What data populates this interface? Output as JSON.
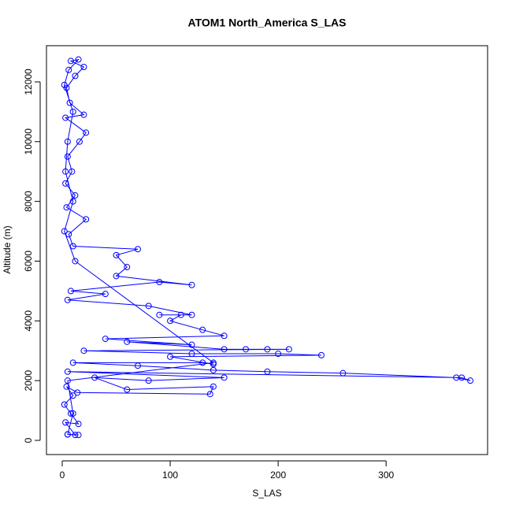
{
  "chart_data": {
    "type": "scatter",
    "title": "ATOM1 North_America S_LAS",
    "x_label": "S_LAS",
    "y_label": "Altitude (m)",
    "x": [
      5,
      12,
      3,
      15,
      8,
      2,
      10,
      4,
      14,
      137,
      140,
      60,
      30,
      80,
      150,
      5,
      370,
      378,
      365,
      260,
      190,
      140,
      70,
      10,
      130,
      140,
      100,
      240,
      200,
      120,
      20,
      210,
      190,
      170,
      150,
      60,
      120,
      40,
      150,
      130,
      100,
      110,
      90,
      120,
      80,
      5,
      40,
      8,
      90,
      120,
      50,
      60,
      50,
      70,
      10,
      6,
      22,
      4,
      12,
      3,
      9,
      5,
      16,
      22,
      3,
      20,
      7,
      4,
      12,
      20,
      8,
      15,
      6,
      2,
      10,
      5,
      3,
      10,
      2,
      12,
      140,
      5,
      10,
      5,
      15
    ],
    "series": [
      {
        "color": "#0000ff",
        "values": [
          200,
          180,
          600,
          550,
          900,
          1200,
          1500,
          1800,
          1600,
          1550,
          1800,
          1700,
          2100,
          2000,
          2100,
          2300,
          2100,
          2000,
          2100,
          2250,
          2300,
          2350,
          2500,
          2600,
          2600,
          2550,
          2800,
          2850,
          2900,
          2900,
          3000,
          3050,
          3050,
          3050,
          3050,
          3300,
          3200,
          3400,
          3500,
          3700,
          4000,
          4200,
          4200,
          4200,
          4500,
          4700,
          4900,
          5000,
          5300,
          5200,
          5500,
          5800,
          6200,
          6400,
          6500,
          6900,
          7400,
          7800,
          8200,
          8600,
          9000,
          9500,
          10000,
          10300,
          10800,
          10900,
          11300,
          11800,
          12200,
          12500,
          12700,
          12750,
          12400,
          11900,
          11000,
          10000,
          9000,
          8000,
          7000,
          6000,
          2600,
          2000,
          900,
          200,
          180
        ]
      }
    ],
    "xlim": [
      -14.6,
      394
    ],
    "ylim": [
      -475,
      13212
    ],
    "xticks": [
      0,
      100,
      200,
      300
    ],
    "yticks": [
      0,
      2000,
      4000,
      6000,
      8000,
      10000,
      12000
    ],
    "grid": false
  }
}
